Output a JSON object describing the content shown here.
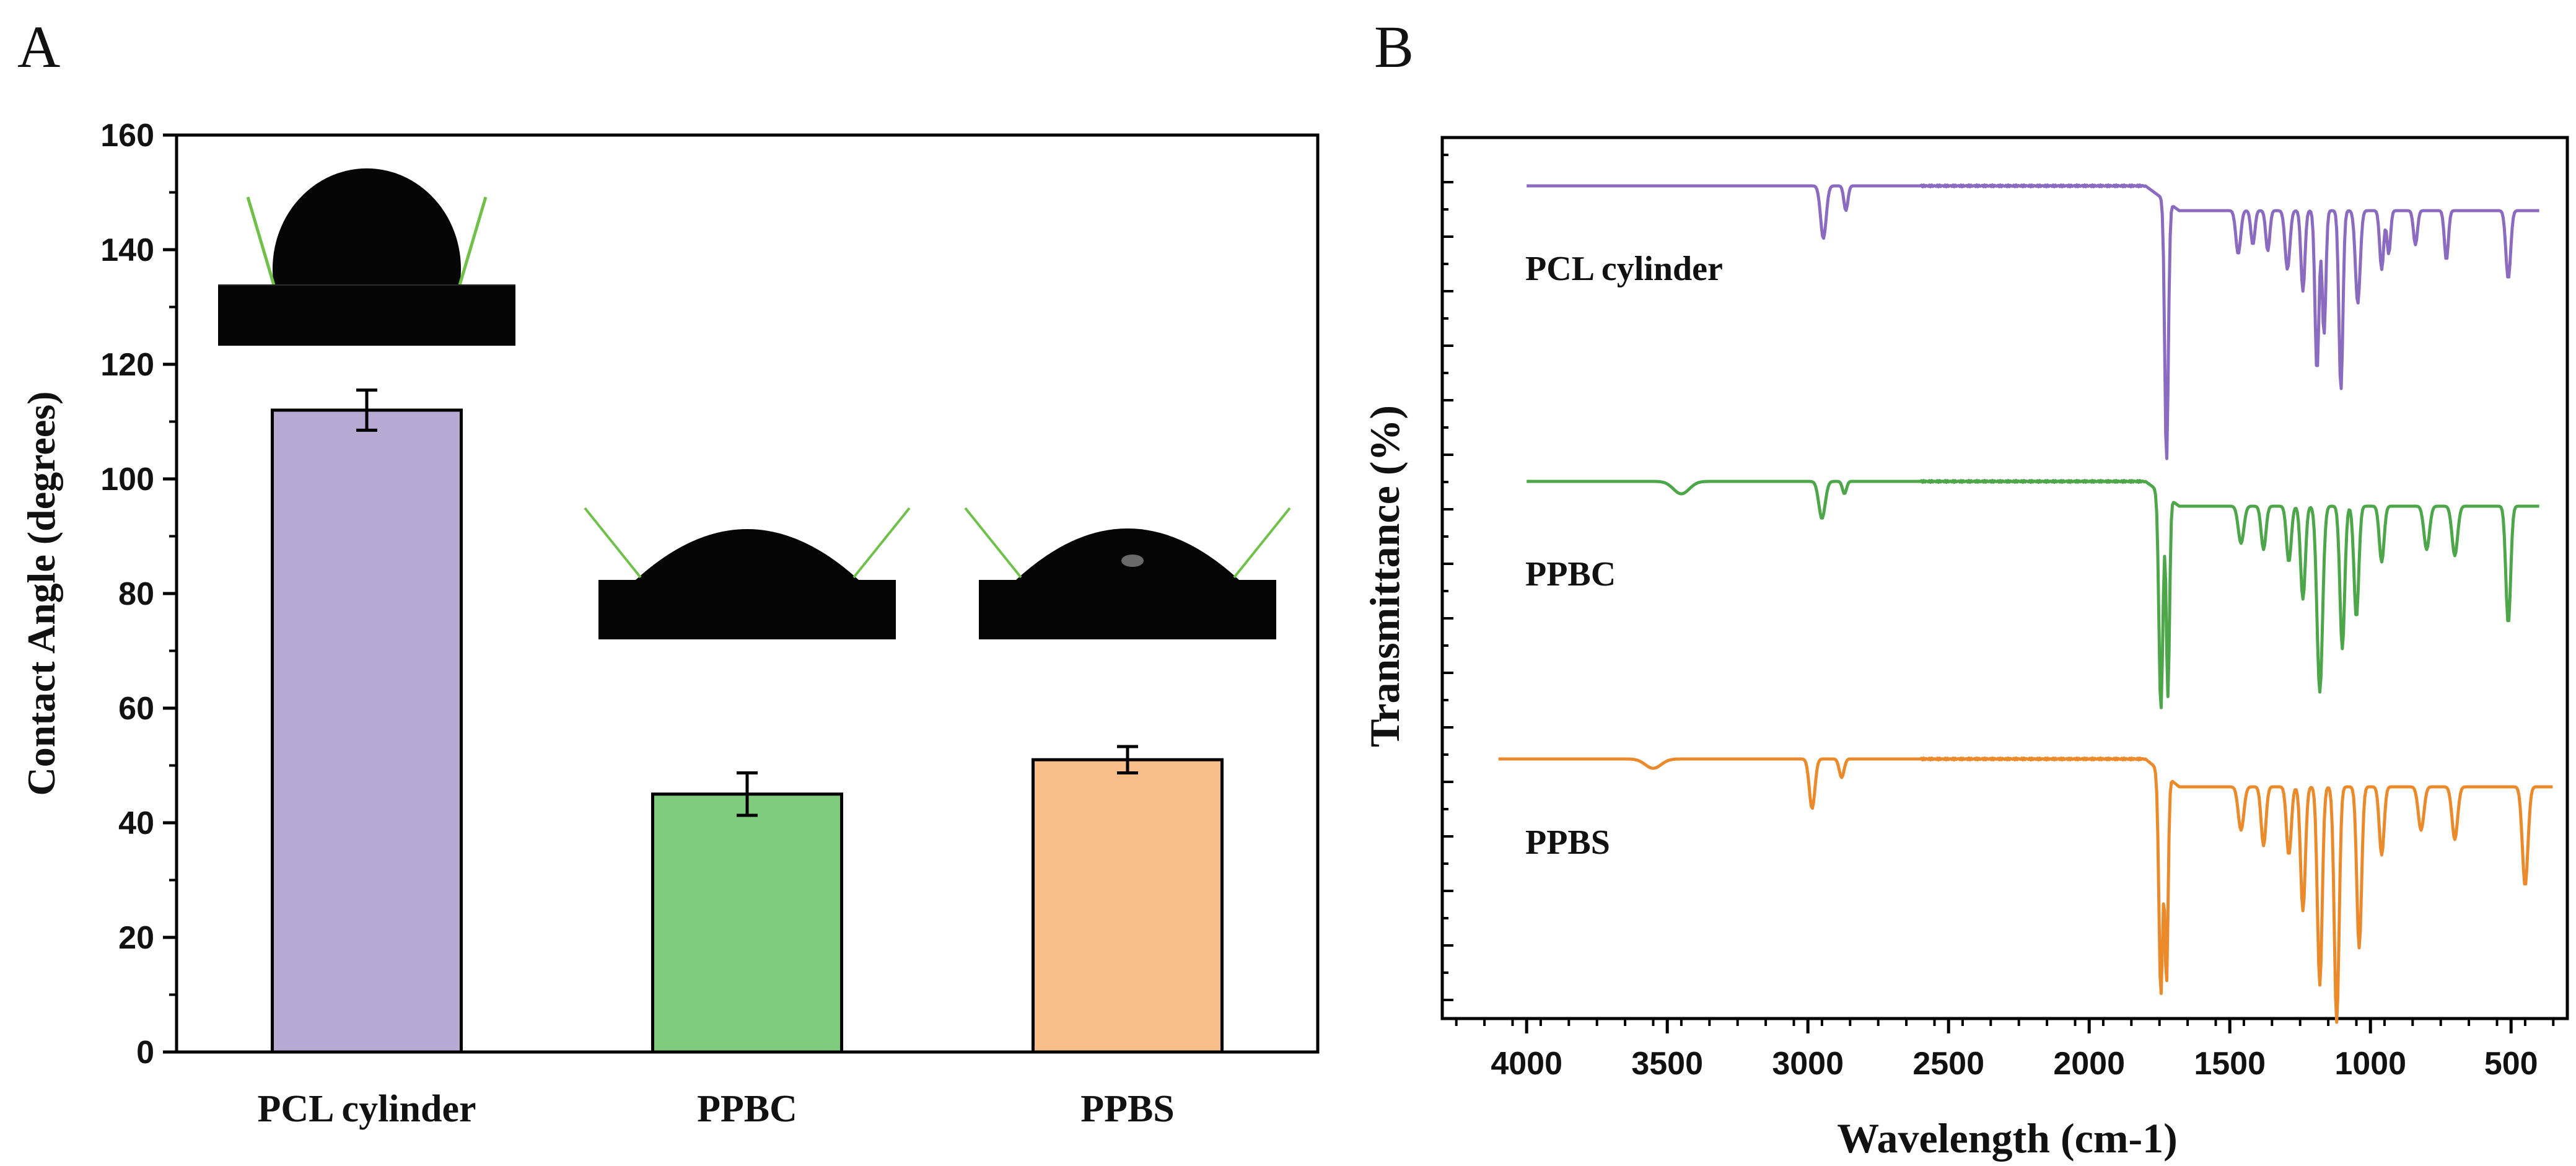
{
  "panels": {
    "a_letter": "A",
    "b_letter": "B"
  },
  "chart_data": [
    {
      "type": "bar",
      "title": "",
      "xlabel": "",
      "ylabel": "Contact Angle (degrees)",
      "ylim": [
        0,
        160
      ],
      "yticks": [
        0,
        20,
        40,
        60,
        80,
        100,
        120,
        140,
        160
      ],
      "grid": false,
      "categories": [
        "PCL cylinder",
        "PPBC",
        "PPBS"
      ],
      "values": [
        112,
        45,
        51
      ],
      "errors": [
        3.5,
        3.7,
        2.3
      ],
      "colors": [
        "#b8a9d4",
        "#7fcc7f",
        "#f7be8a"
      ],
      "insets": "water droplet photographs above each bar"
    },
    {
      "type": "line",
      "title": "",
      "xlabel": "Wavelength (cm-1)",
      "ylabel": "Transmittance (%)",
      "xlim": [
        4300,
        300
      ],
      "xticks": [
        4000,
        3500,
        3000,
        2500,
        2000,
        1500,
        1000,
        500
      ],
      "yticks_labeled": false,
      "grid": false,
      "series": [
        {
          "name": "PCL cylinder",
          "color": "#8b6bbf"
        },
        {
          "name": "PPBC",
          "color": "#4ea64a"
        },
        {
          "name": "PPBS",
          "color": "#ea8a2a"
        }
      ]
    }
  ]
}
